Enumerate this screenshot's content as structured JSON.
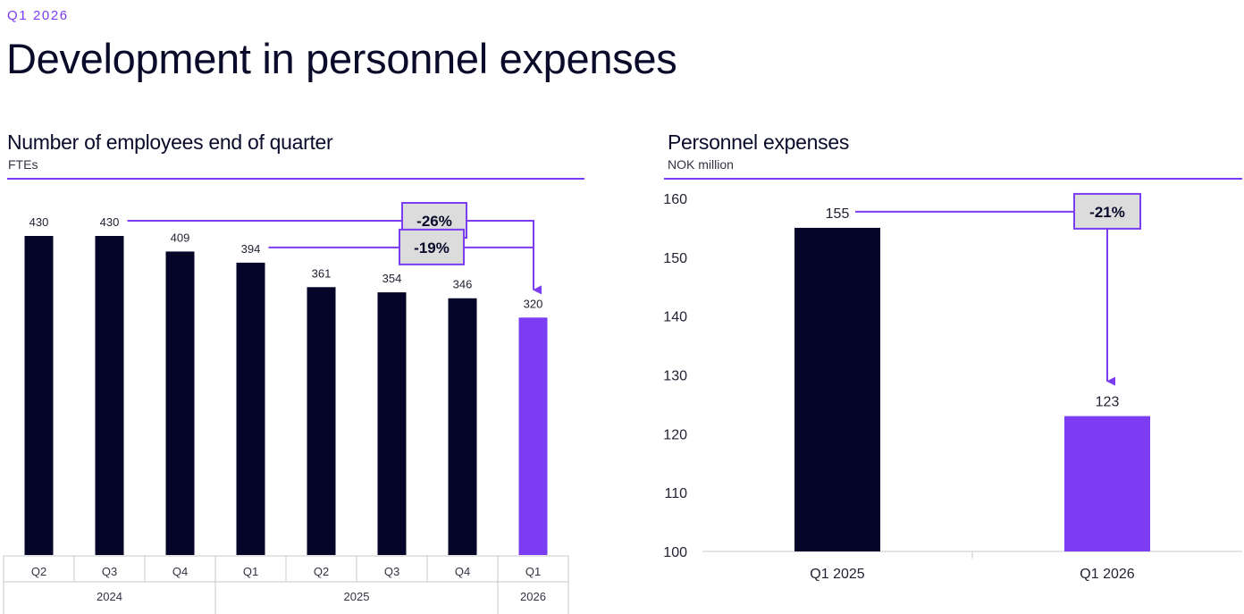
{
  "header": {
    "kicker": "Q1 2026",
    "title": "Development in personnel expenses"
  },
  "colors": {
    "accent": "#7b3cf2",
    "bar_dark": "#05052a",
    "badge_fill": "#dcdcdc"
  },
  "chart_data": [
    {
      "type": "bar",
      "title": "Number of employees end of quarter",
      "subtitle": "FTEs",
      "categories": [
        "Q2",
        "Q3",
        "Q4",
        "Q1",
        "Q2",
        "Q3",
        "Q4",
        "Q1"
      ],
      "years": [
        {
          "label": "2024",
          "span": 3
        },
        {
          "label": "2025",
          "span": 4
        },
        {
          "label": "2026",
          "span": 1
        }
      ],
      "values": [
        430,
        430,
        409,
        394,
        361,
        354,
        346,
        320
      ],
      "highlight_index": 7,
      "ylim": [
        0,
        430
      ],
      "grid": false,
      "annotations": [
        {
          "label": "-26%",
          "from_index": 1,
          "to_index": 7
        },
        {
          "label": "-19%",
          "from_index": 3,
          "to_index": 7
        }
      ]
    },
    {
      "type": "bar",
      "title": "Personnel expenses",
      "subtitle": "NOK million",
      "categories": [
        "Q1 2025",
        "Q1 2026"
      ],
      "values": [
        155,
        123
      ],
      "highlight_index": 1,
      "ylim": [
        100,
        160
      ],
      "yticks": [
        100,
        110,
        120,
        130,
        140,
        150,
        160
      ],
      "grid": false,
      "annotations": [
        {
          "label": "-21%",
          "from_index": 0,
          "to_index": 1
        }
      ]
    }
  ]
}
